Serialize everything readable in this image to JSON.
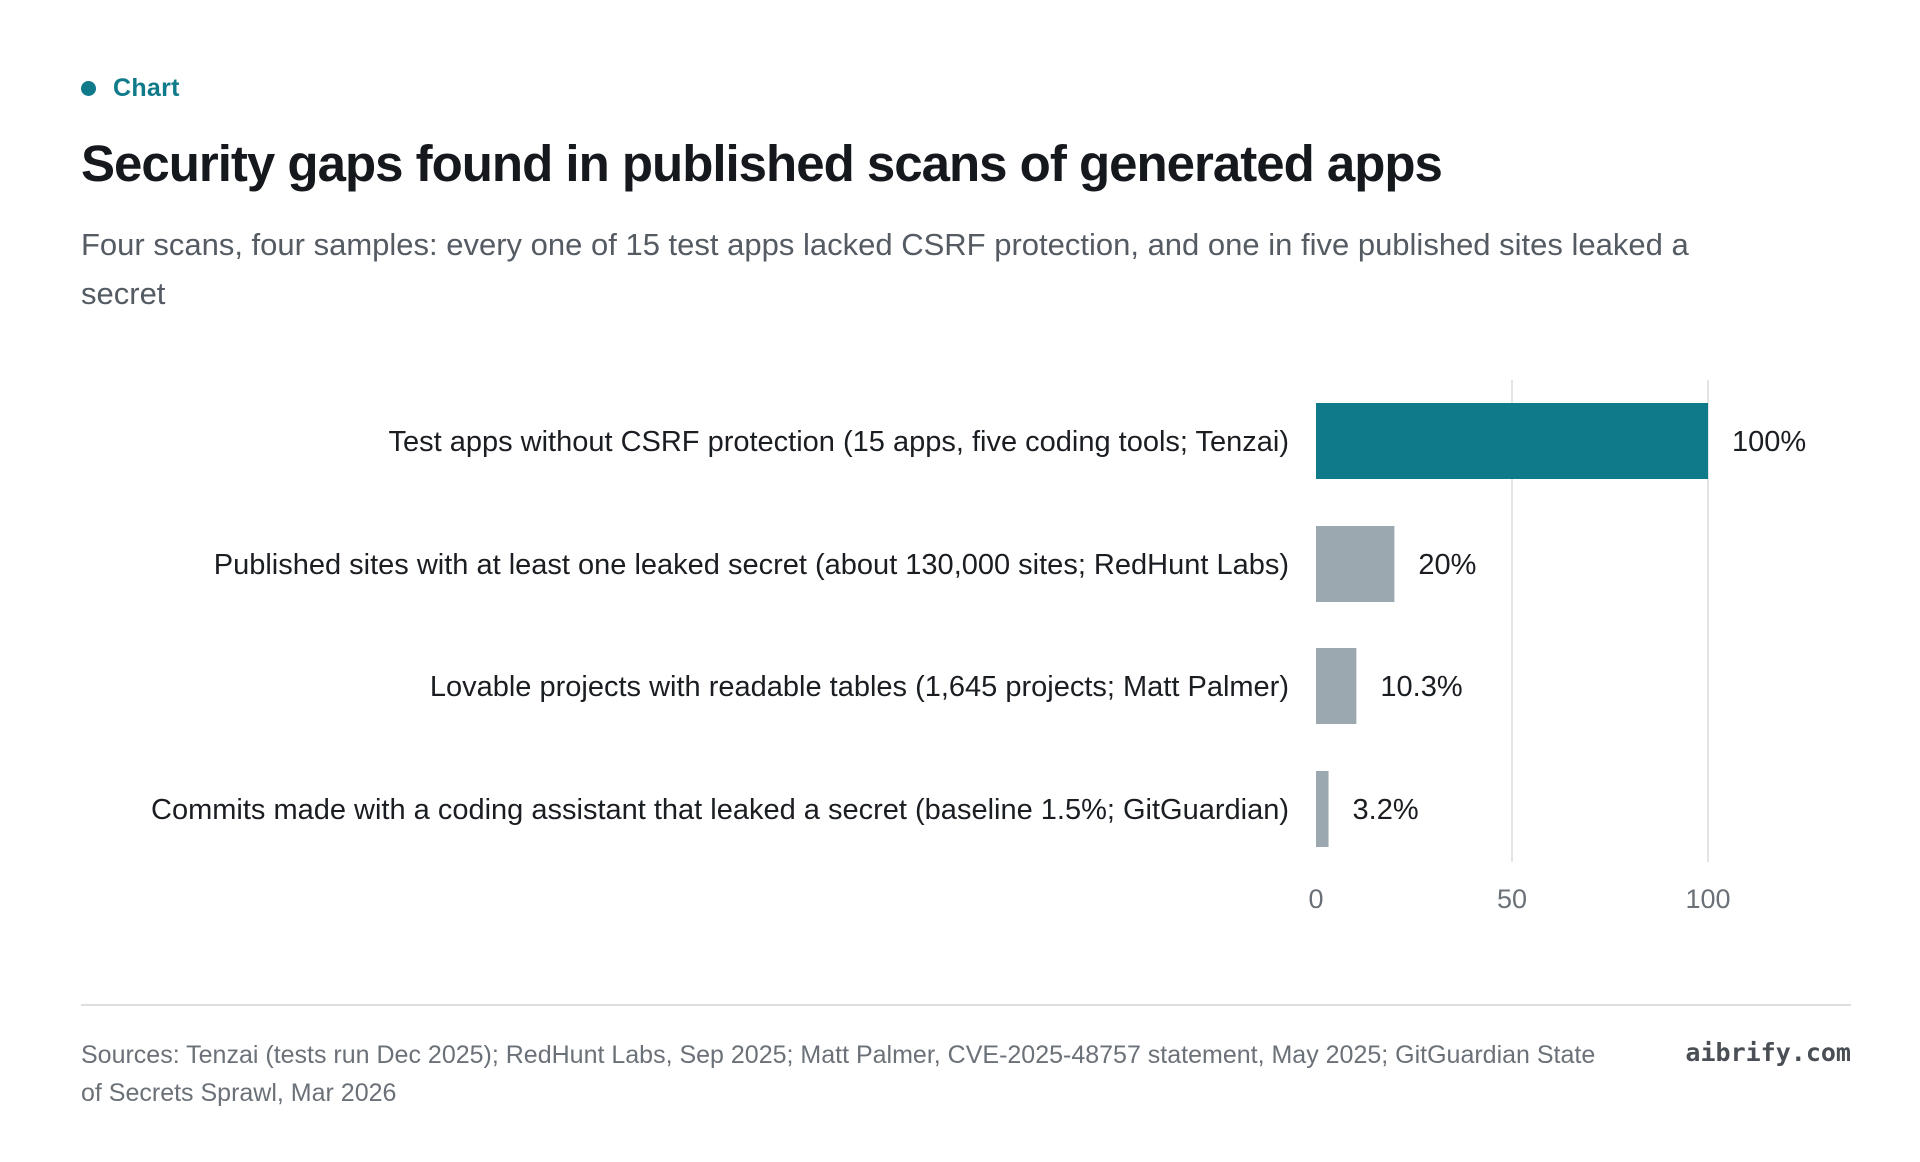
{
  "header": {
    "eyebrow": "Chart",
    "title": "Security gaps found in published scans of generated apps",
    "subtitle": "Four scans, four samples: every one of 15 test apps lacked CSRF protection, and one in five published sites leaked a secret"
  },
  "colors": {
    "accent": "#0e7a8a",
    "bar_highlight": "#0e7a8a",
    "bar_muted": "#9ca8b0",
    "grid": "#e2e4e6",
    "tick_text": "#6b7178"
  },
  "chart_data": {
    "type": "bar",
    "orientation": "horizontal",
    "categories": [
      "Test apps without CSRF protection (15 apps, five coding tools; Tenzai)",
      "Published sites with at least one leaked secret (about 130,000 sites; RedHunt Labs)",
      "Lovable projects with readable tables (1,645 projects; Matt Palmer)",
      "Commits made with a coding assistant that leaked a secret (baseline 1.5%; GitGuardian)"
    ],
    "values": [
      100,
      20,
      10.3,
      3.2
    ],
    "value_labels": [
      "100%",
      "20%",
      "10.3%",
      "3.2%"
    ],
    "highlight_index": 0,
    "xlim": [
      0,
      100
    ],
    "xticks": [
      0,
      50,
      100
    ],
    "xtick_labels": [
      "0",
      "50",
      "100"
    ],
    "grid": true,
    "legend": "none"
  },
  "footer": {
    "sources": "Sources: Tenzai (tests run Dec 2025); RedHunt Labs, Sep 2025; Matt Palmer, CVE-2025-48757 statement, May 2025; GitGuardian State of Secrets Sprawl, Mar 2026",
    "brand": "aibrify.com"
  }
}
